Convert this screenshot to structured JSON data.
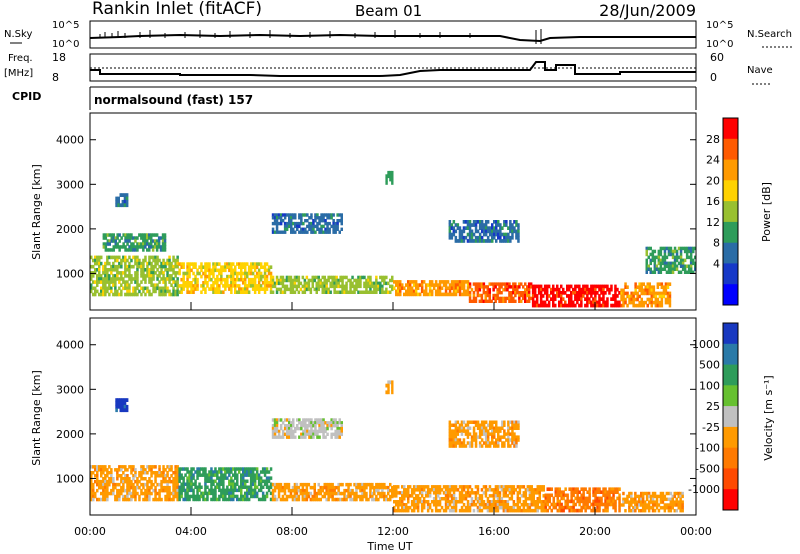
{
  "header": {
    "station": "Rankin Inlet (fitACF)",
    "beam": "Beam 01",
    "date": "28/Jun/2009"
  },
  "strips": {
    "nsky_label": "N.Sky",
    "nsky_ticks": [
      "10^5",
      "10^0"
    ],
    "nsearch_label": "N.Search",
    "nsearch_ticks": [
      "10^5",
      "10^0"
    ],
    "freq_label": "Freq.",
    "freq_unit": "[MHz]",
    "freq_ticks": [
      "18",
      "8"
    ],
    "nave_label": "Nave",
    "nave_ticks": [
      "60",
      "0"
    ],
    "cpid_label": "CPID",
    "cpid_text": "normalsound (fast) 157"
  },
  "chart_data": [
    {
      "type": "heatmap",
      "name": "power",
      "ylabel": "Slant Range [km]",
      "yticks": [
        "4000",
        "3000",
        "2000",
        "1000"
      ],
      "xlim": [
        0,
        24
      ],
      "ylim": [
        180,
        4600
      ],
      "colorbar": {
        "label": "Power [dB]",
        "ticks": [
          "28",
          "24",
          "20",
          "16",
          "12",
          "8",
          "4"
        ],
        "colors": [
          "#ff0000",
          "#ff5a00",
          "#ff9a00",
          "#ffd200",
          "#99c030",
          "#2e9c5a",
          "#2a6ca6",
          "#1638c8",
          "#0000ff"
        ]
      },
      "regions": [
        {
          "t0": 0.0,
          "t1": 3.5,
          "r0": 500,
          "r1": 1400,
          "level": 12
        },
        {
          "t0": 3.5,
          "t1": 7.2,
          "r0": 550,
          "r1": 1250,
          "level": 16
        },
        {
          "t0": 7.2,
          "t1": 12.0,
          "r0": 550,
          "r1": 950,
          "level": 12
        },
        {
          "t0": 12.0,
          "t1": 15.0,
          "r0": 500,
          "r1": 850,
          "level": 20
        },
        {
          "t0": 15.0,
          "t1": 17.5,
          "r0": 350,
          "r1": 800,
          "level": 24
        },
        {
          "t0": 17.5,
          "t1": 21.0,
          "r0": 250,
          "r1": 750,
          "level": 28
        },
        {
          "t0": 21.0,
          "t1": 23.0,
          "r0": 250,
          "r1": 800,
          "level": 22
        },
        {
          "t0": 0.5,
          "t1": 3.0,
          "r0": 1500,
          "r1": 1900,
          "level": 8
        },
        {
          "t0": 7.2,
          "t1": 10.0,
          "r0": 1900,
          "r1": 2350,
          "level": 6
        },
        {
          "t0": 14.2,
          "t1": 17.0,
          "r0": 1700,
          "r1": 2200,
          "level": 6
        },
        {
          "t0": 1.0,
          "t1": 1.5,
          "r0": 2500,
          "r1": 2800,
          "level": 4
        },
        {
          "t0": 11.7,
          "t1": 12.0,
          "r0": 3000,
          "r1": 3300,
          "level": 8
        },
        {
          "t0": 22.0,
          "t1": 24.0,
          "r0": 1000,
          "r1": 1600,
          "level": 10
        }
      ]
    },
    {
      "type": "heatmap",
      "name": "velocity",
      "ylabel": "Slant Range [km]",
      "yticks": [
        "4000",
        "3000",
        "2000",
        "1000"
      ],
      "xlabel": "Time UT",
      "xticks": [
        "00:00",
        "04:00",
        "08:00",
        "12:00",
        "16:00",
        "20:00",
        "00:00"
      ],
      "xlim": [
        0,
        24
      ],
      "ylim": [
        180,
        4600
      ],
      "colorbar": {
        "label": "Velocity [m s⁻¹]",
        "ticks": [
          "1000",
          "500",
          "100",
          "25",
          "-25",
          "-100",
          "-500",
          "-1000"
        ],
        "colors": [
          "#1838c0",
          "#2a7aa8",
          "#2e9c5a",
          "#66c030",
          "#c0c0c0",
          "#ff9a00",
          "#ff7a00",
          "#ff4a00",
          "#ff0000"
        ]
      },
      "regions": [
        {
          "t0": 0.0,
          "t1": 3.5,
          "r0": 500,
          "r1": 1300,
          "velocity": -100
        },
        {
          "t0": 3.5,
          "t1": 7.2,
          "r0": 500,
          "r1": 1250,
          "velocity": 100
        },
        {
          "t0": 7.2,
          "t1": 12.0,
          "r0": 500,
          "r1": 900,
          "velocity": -100
        },
        {
          "t0": 12.0,
          "t1": 18.0,
          "r0": 250,
          "r1": 850,
          "velocity": -100
        },
        {
          "t0": 18.0,
          "t1": 21.0,
          "r0": 250,
          "r1": 800,
          "velocity": -500
        },
        {
          "t0": 21.0,
          "t1": 23.5,
          "r0": 250,
          "r1": 700,
          "velocity": -100
        },
        {
          "t0": 7.2,
          "t1": 10.0,
          "r0": 1900,
          "r1": 2350,
          "velocity": 0
        },
        {
          "t0": 14.2,
          "t1": 17.0,
          "r0": 1700,
          "r1": 2300,
          "velocity": -100
        },
        {
          "t0": 1.0,
          "t1": 1.5,
          "r0": 2500,
          "r1": 2800,
          "velocity": 1000
        },
        {
          "t0": 11.7,
          "t1": 12.0,
          "r0": 2900,
          "r1": 3200,
          "velocity": -100
        }
      ]
    }
  ],
  "colors": {
    "axis": "#000000",
    "background": "#ffffff"
  }
}
